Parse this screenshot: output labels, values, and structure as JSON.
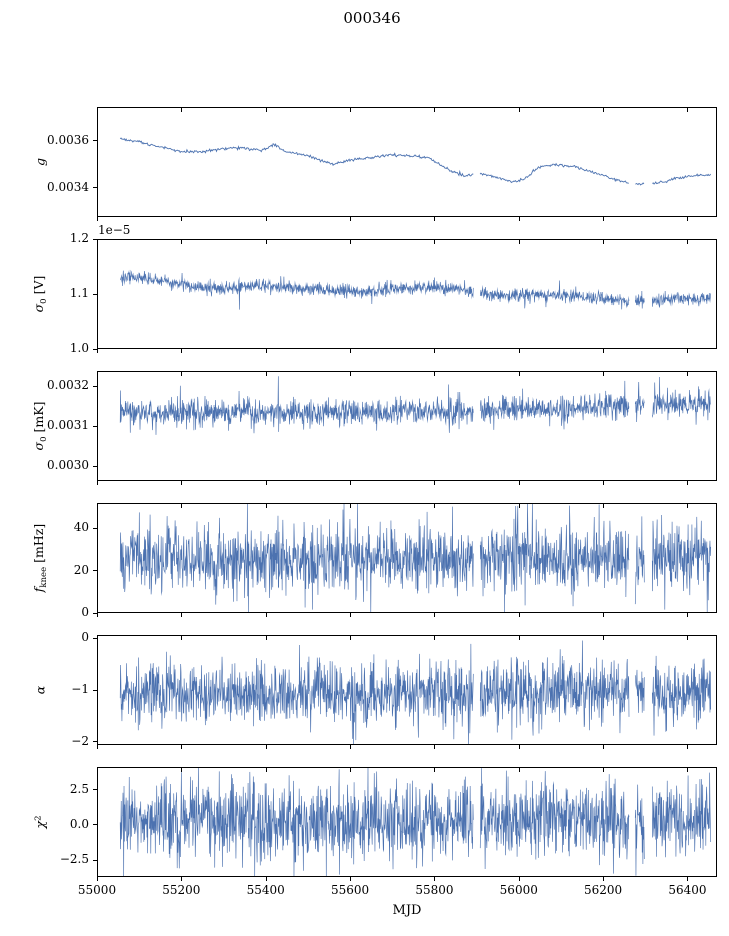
{
  "title": "000346",
  "chart_data": {
    "type": "line",
    "title": "000346",
    "xlabel": "MJD",
    "xlim": [
      55000,
      56470
    ],
    "x_range": [
      55055,
      56455
    ],
    "xticks": [
      55000,
      55200,
      55400,
      55600,
      55800,
      56000,
      56200,
      56400
    ],
    "xtick_labels": [
      "55000",
      "55200",
      "55400",
      "55600",
      "55800",
      "56000",
      "56200",
      "56400"
    ],
    "line_color": "#4c72b0",
    "background": "#ffffff",
    "grid": false,
    "legend": false,
    "gaps": [
      [
        55893,
        55908
      ],
      [
        56262,
        56276
      ],
      [
        56298,
        56316
      ]
    ],
    "panels": [
      {
        "id": "g",
        "ylabel": "g",
        "ylabel_segments": [
          {
            "t": "g",
            "style": "i"
          }
        ],
        "ylim": [
          0.003275,
          0.003745
        ],
        "yticks": [
          0.0034,
          0.0036
        ],
        "ytick_labels": [
          "0.0034",
          "0.0036"
        ],
        "noise_sigma": 3e-06,
        "trend": [
          [
            55055,
            0.00361
          ],
          [
            55100,
            0.003595
          ],
          [
            55150,
            0.003575
          ],
          [
            55200,
            0.003555
          ],
          [
            55240,
            0.003555
          ],
          [
            55290,
            0.003565
          ],
          [
            55340,
            0.00357
          ],
          [
            55390,
            0.00356
          ],
          [
            55420,
            0.003585
          ],
          [
            55445,
            0.003555
          ],
          [
            55480,
            0.003545
          ],
          [
            55520,
            0.003525
          ],
          [
            55560,
            0.0035
          ],
          [
            55600,
            0.00352
          ],
          [
            55650,
            0.00353
          ],
          [
            55700,
            0.00354
          ],
          [
            55750,
            0.003535
          ],
          [
            55790,
            0.003525
          ],
          [
            55830,
            0.00348
          ],
          [
            55870,
            0.00345
          ],
          [
            55910,
            0.00346
          ],
          [
            55950,
            0.003445
          ],
          [
            55980,
            0.003425
          ],
          [
            56010,
            0.003435
          ],
          [
            56050,
            0.00349
          ],
          [
            56090,
            0.0035
          ],
          [
            56130,
            0.00349
          ],
          [
            56170,
            0.00347
          ],
          [
            56210,
            0.003445
          ],
          [
            56250,
            0.003425
          ],
          [
            56290,
            0.003415
          ],
          [
            56330,
            0.00342
          ],
          [
            56370,
            0.00344
          ],
          [
            56410,
            0.00345
          ],
          [
            56455,
            0.003455
          ]
        ]
      },
      {
        "id": "sigma0-v",
        "ylabel": "σ₀ [V]",
        "offset_label": "1e−5",
        "ylabel_segments": [
          {
            "t": "σ",
            "style": "i"
          },
          {
            "t": "0",
            "style": "sub"
          },
          {
            "t": " [V]"
          }
        ],
        "ylim": [
          1e-05,
          1.2e-05
        ],
        "yticks": [
          1e-05,
          1.1e-05,
          1.2e-05
        ],
        "ytick_labels": [
          "1.0",
          "1.1",
          "1.2"
        ],
        "noise_sigma": 5.5e-08,
        "spike_prob": 0.03,
        "spike_scale": 1.8,
        "trend": [
          [
            55055,
            1.131e-05
          ],
          [
            55110,
            1.129e-05
          ],
          [
            55170,
            1.122e-05
          ],
          [
            55220,
            1.114e-05
          ],
          [
            55260,
            1.11e-05
          ],
          [
            55320,
            1.112e-05
          ],
          [
            55380,
            1.114e-05
          ],
          [
            55450,
            1.114e-05
          ],
          [
            55510,
            1.108e-05
          ],
          [
            55570,
            1.104e-05
          ],
          [
            55640,
            1.103e-05
          ],
          [
            55710,
            1.11e-05
          ],
          [
            55770,
            1.112e-05
          ],
          [
            55830,
            1.11e-05
          ],
          [
            55880,
            1.106e-05
          ],
          [
            55930,
            1.099e-05
          ],
          [
            55980,
            1.097e-05
          ],
          [
            56040,
            1.1e-05
          ],
          [
            56100,
            1.098e-05
          ],
          [
            56160,
            1.093e-05
          ],
          [
            56220,
            1.09e-05
          ],
          [
            56270,
            1.084e-05
          ],
          [
            56330,
            1.089e-05
          ],
          [
            56390,
            1.092e-05
          ],
          [
            56455,
            1.093e-05
          ]
        ]
      },
      {
        "id": "sigma0-mk",
        "ylabel": "σ₀ [mK]",
        "ylabel_segments": [
          {
            "t": "σ",
            "style": "i"
          },
          {
            "t": "0",
            "style": "sub"
          },
          {
            "t": " [mK]"
          }
        ],
        "ylim": [
          0.0029625,
          0.0032375
        ],
        "yticks": [
          0.003,
          0.0031,
          0.0032
        ],
        "ytick_labels": [
          "0.0030",
          "0.0031",
          "0.0032"
        ],
        "noise_sigma": 1.6e-05,
        "spike_prob": 0.04,
        "spike_scale": 1.8,
        "trend": [
          [
            55055,
            0.003132
          ],
          [
            55300,
            0.003134
          ],
          [
            55600,
            0.003133
          ],
          [
            55800,
            0.003136
          ],
          [
            55950,
            0.003141
          ],
          [
            56100,
            0.003144
          ],
          [
            56250,
            0.00315
          ],
          [
            56350,
            0.003153
          ],
          [
            56455,
            0.003155
          ]
        ]
      },
      {
        "id": "fknee",
        "ylabel": "f_knee [mHz]",
        "ylabel_segments": [
          {
            "t": "f",
            "style": "i"
          },
          {
            "t": "knee",
            "style": "sub"
          },
          {
            "t": " [mHz]"
          }
        ],
        "ylim": [
          0,
          51.8
        ],
        "yticks": [
          0,
          20,
          40
        ],
        "ytick_labels": [
          "0",
          "20",
          "40"
        ],
        "noise_sigma": 8,
        "spike_prob": 0.03,
        "spike_scale": 1.5,
        "trend": [
          [
            55055,
            26
          ],
          [
            55400,
            25
          ],
          [
            55700,
            26
          ],
          [
            56000,
            27
          ],
          [
            56200,
            26
          ],
          [
            56455,
            26
          ]
        ]
      },
      {
        "id": "alpha",
        "ylabel": "α",
        "ylabel_segments": [
          {
            "t": "α",
            "style": "i"
          }
        ],
        "ylim": [
          -2.06,
          0.06
        ],
        "yticks": [
          -2,
          -1,
          0
        ],
        "ytick_labels": [
          "−2",
          "−1",
          "0"
        ],
        "noise_sigma": 0.3,
        "spike_prob": 0.02,
        "spike_scale": 1.5,
        "trend": [
          [
            55055,
            -1.05
          ],
          [
            55500,
            -1.06
          ],
          [
            55900,
            -1.02
          ],
          [
            56200,
            -1.05
          ],
          [
            56455,
            -1.05
          ]
        ]
      },
      {
        "id": "chi2",
        "ylabel": "χ²",
        "ylabel_segments": [
          {
            "t": "χ",
            "style": "i"
          },
          {
            "t": "2",
            "style": "sup"
          }
        ],
        "ylim": [
          -3.7,
          4.1
        ],
        "yticks": [
          -2.5,
          0,
          2.5
        ],
        "ytick_labels": [
          "−2.5",
          "0.0",
          "2.5"
        ],
        "noise_sigma": 1.35,
        "trend": [
          [
            55055,
            0.3
          ],
          [
            55700,
            0.25
          ],
          [
            56100,
            0.35
          ],
          [
            56455,
            0.3
          ]
        ]
      }
    ]
  }
}
